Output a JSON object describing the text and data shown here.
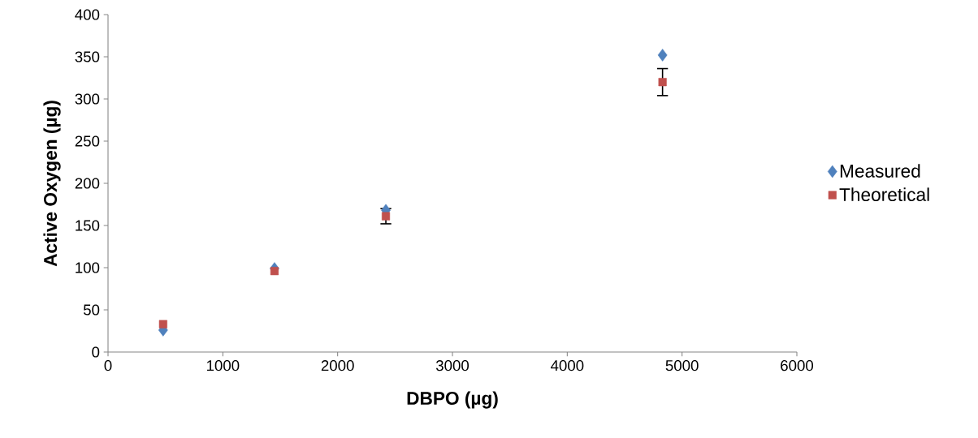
{
  "chart_data": {
    "type": "scatter",
    "xlabel": "DBPO (µg)",
    "ylabel": "Active Oxygen (µg)",
    "xlim": [
      0,
      6000
    ],
    "xticks": [
      0,
      1000,
      2000,
      3000,
      4000,
      5000,
      6000
    ],
    "ylim": [
      0,
      400
    ],
    "yticks": [
      0,
      50,
      100,
      150,
      200,
      250,
      300,
      350,
      400
    ],
    "grid": false,
    "legend": "right",
    "series": [
      {
        "name": "Measured",
        "color": "#4f81bd",
        "marker": "diamond",
        "x": [
          480,
          1450,
          2420,
          4830
        ],
        "values": [
          26,
          99,
          168,
          352
        ]
      },
      {
        "name": "Theoretical",
        "color": "#c0504d",
        "marker": "square",
        "x": [
          480,
          1450,
          2420,
          4830
        ],
        "values": [
          33,
          96,
          161,
          320
        ],
        "errors": [
          null,
          null,
          9,
          16
        ]
      }
    ]
  }
}
